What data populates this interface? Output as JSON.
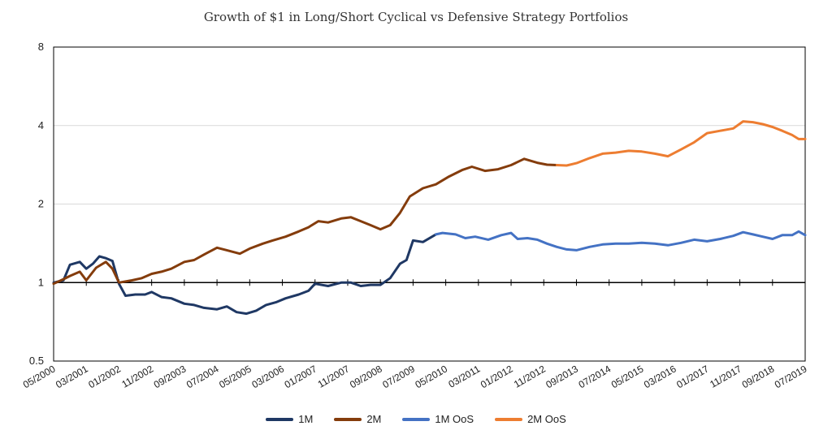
{
  "chart_data": {
    "type": "line",
    "title": "Growth of $1 in Long/Short Cyclical vs Defensive Strategy Portfolios",
    "xlabel": "",
    "ylabel": "",
    "yscale": "log2",
    "ylim": [
      0.5,
      8
    ],
    "yticks": [
      "0.5",
      "1",
      "2",
      "4",
      "8"
    ],
    "xlim": [
      "2000-05",
      "2019-07"
    ],
    "xticks": [
      "05/2000",
      "03/2001",
      "01/2002",
      "11/2002",
      "09/2003",
      "07/2004",
      "05/2005",
      "03/2006",
      "01/2007",
      "11/2007",
      "09/2008",
      "07/2009",
      "05/2010",
      "03/2011",
      "01/2012",
      "11/2012",
      "09/2013",
      "07/2014",
      "05/2015",
      "03/2016",
      "01/2017",
      "11/2017",
      "09/2018",
      "07/2019"
    ],
    "grid": "horizontal",
    "legend": "bottom",
    "series": [
      {
        "name": "1M",
        "color": "#1f3864",
        "points": [
          [
            "2000-05",
            1.0
          ],
          [
            "2000-08",
            1.02
          ],
          [
            "2000-10",
            1.17
          ],
          [
            "2001-01",
            1.2
          ],
          [
            "2001-03",
            1.13
          ],
          [
            "2001-05",
            1.18
          ],
          [
            "2001-07",
            1.26
          ],
          [
            "2001-09",
            1.24
          ],
          [
            "2001-11",
            1.21
          ],
          [
            "2002-01",
            0.99
          ],
          [
            "2002-03",
            0.89
          ],
          [
            "2002-06",
            0.9
          ],
          [
            "2002-09",
            0.9
          ],
          [
            "2002-11",
            0.92
          ],
          [
            "2003-02",
            0.88
          ],
          [
            "2003-05",
            0.87
          ],
          [
            "2003-09",
            0.83
          ],
          [
            "2003-12",
            0.82
          ],
          [
            "2004-03",
            0.8
          ],
          [
            "2004-07",
            0.79
          ],
          [
            "2004-10",
            0.81
          ],
          [
            "2005-01",
            0.77
          ],
          [
            "2005-04",
            0.76
          ],
          [
            "2005-07",
            0.78
          ],
          [
            "2005-10",
            0.82
          ],
          [
            "2006-01",
            0.84
          ],
          [
            "2006-04",
            0.87
          ],
          [
            "2006-08",
            0.9
          ],
          [
            "2006-11",
            0.93
          ],
          [
            "2007-01",
            0.99
          ],
          [
            "2007-05",
            0.97
          ],
          [
            "2007-09",
            1.0
          ],
          [
            "2007-12",
            1.0
          ],
          [
            "2008-03",
            0.97
          ],
          [
            "2008-06",
            0.98
          ],
          [
            "2008-09",
            0.98
          ],
          [
            "2008-12",
            1.04
          ],
          [
            "2009-03",
            1.18
          ],
          [
            "2009-05",
            1.22
          ],
          [
            "2009-07",
            1.45
          ],
          [
            "2009-10",
            1.43
          ],
          [
            "2010-02",
            1.53
          ]
        ]
      },
      {
        "name": "2M",
        "color": "#843c0c",
        "points": [
          [
            "2000-05",
            0.99
          ],
          [
            "2000-08",
            1.03
          ],
          [
            "2000-10",
            1.06
          ],
          [
            "2001-01",
            1.1
          ],
          [
            "2001-03",
            1.02
          ],
          [
            "2001-06",
            1.14
          ],
          [
            "2001-09",
            1.2
          ],
          [
            "2001-11",
            1.13
          ],
          [
            "2002-01",
            1.0
          ],
          [
            "2002-05",
            1.02
          ],
          [
            "2002-08",
            1.04
          ],
          [
            "2002-11",
            1.08
          ],
          [
            "2003-02",
            1.1
          ],
          [
            "2003-05",
            1.13
          ],
          [
            "2003-09",
            1.2
          ],
          [
            "2003-12",
            1.22
          ],
          [
            "2004-03",
            1.28
          ],
          [
            "2004-07",
            1.36
          ],
          [
            "2004-10",
            1.33
          ],
          [
            "2005-02",
            1.29
          ],
          [
            "2005-05",
            1.35
          ],
          [
            "2005-09",
            1.41
          ],
          [
            "2005-12",
            1.45
          ],
          [
            "2006-04",
            1.5
          ],
          [
            "2006-08",
            1.57
          ],
          [
            "2006-11",
            1.63
          ],
          [
            "2007-02",
            1.72
          ],
          [
            "2007-05",
            1.7
          ],
          [
            "2007-09",
            1.76
          ],
          [
            "2007-12",
            1.78
          ],
          [
            "2008-03",
            1.72
          ],
          [
            "2008-06",
            1.66
          ],
          [
            "2008-09",
            1.6
          ],
          [
            "2008-12",
            1.66
          ],
          [
            "2009-03",
            1.85
          ],
          [
            "2009-06",
            2.14
          ],
          [
            "2009-10",
            2.3
          ],
          [
            "2010-02",
            2.38
          ],
          [
            "2010-06",
            2.55
          ],
          [
            "2010-10",
            2.7
          ],
          [
            "2011-01",
            2.78
          ],
          [
            "2011-05",
            2.68
          ],
          [
            "2011-09",
            2.72
          ],
          [
            "2012-01",
            2.82
          ],
          [
            "2012-05",
            2.98
          ],
          [
            "2012-09",
            2.88
          ],
          [
            "2012-12",
            2.83
          ],
          [
            "2013-03",
            2.82
          ]
        ]
      },
      {
        "name": "1M OoS",
        "color": "#4472c4",
        "points": [
          [
            "2010-02",
            1.53
          ],
          [
            "2010-04",
            1.55
          ],
          [
            "2010-08",
            1.53
          ],
          [
            "2010-11",
            1.48
          ],
          [
            "2011-02",
            1.5
          ],
          [
            "2011-06",
            1.46
          ],
          [
            "2011-10",
            1.52
          ],
          [
            "2012-01",
            1.55
          ],
          [
            "2012-03",
            1.47
          ],
          [
            "2012-06",
            1.48
          ],
          [
            "2012-09",
            1.46
          ],
          [
            "2012-12",
            1.41
          ],
          [
            "2013-03",
            1.37
          ],
          [
            "2013-06",
            1.34
          ],
          [
            "2013-09",
            1.33
          ],
          [
            "2014-01",
            1.37
          ],
          [
            "2014-05",
            1.4
          ],
          [
            "2014-09",
            1.41
          ],
          [
            "2015-01",
            1.41
          ],
          [
            "2015-05",
            1.42
          ],
          [
            "2015-09",
            1.41
          ],
          [
            "2016-01",
            1.39
          ],
          [
            "2016-05",
            1.42
          ],
          [
            "2016-09",
            1.46
          ],
          [
            "2017-01",
            1.44
          ],
          [
            "2017-05",
            1.47
          ],
          [
            "2017-09",
            1.51
          ],
          [
            "2017-12",
            1.56
          ],
          [
            "2018-03",
            1.53
          ],
          [
            "2018-06",
            1.5
          ],
          [
            "2018-09",
            1.47
          ],
          [
            "2018-12",
            1.52
          ],
          [
            "2019-03",
            1.52
          ],
          [
            "2019-05",
            1.57
          ],
          [
            "2019-07",
            1.52
          ]
        ]
      },
      {
        "name": "2M OoS",
        "color": "#ed7d31",
        "points": [
          [
            "2013-03",
            2.82
          ],
          [
            "2013-06",
            2.81
          ],
          [
            "2013-09",
            2.87
          ],
          [
            "2014-01",
            3.0
          ],
          [
            "2014-05",
            3.12
          ],
          [
            "2014-09",
            3.15
          ],
          [
            "2015-01",
            3.2
          ],
          [
            "2015-05",
            3.18
          ],
          [
            "2015-09",
            3.12
          ],
          [
            "2016-01",
            3.05
          ],
          [
            "2016-05",
            3.24
          ],
          [
            "2016-09",
            3.45
          ],
          [
            "2017-01",
            3.74
          ],
          [
            "2017-05",
            3.82
          ],
          [
            "2017-09",
            3.9
          ],
          [
            "2017-12",
            4.15
          ],
          [
            "2018-03",
            4.12
          ],
          [
            "2018-06",
            4.05
          ],
          [
            "2018-09",
            3.95
          ],
          [
            "2018-12",
            3.82
          ],
          [
            "2019-03",
            3.68
          ],
          [
            "2019-05",
            3.55
          ],
          [
            "2019-07",
            3.55
          ]
        ]
      }
    ]
  }
}
